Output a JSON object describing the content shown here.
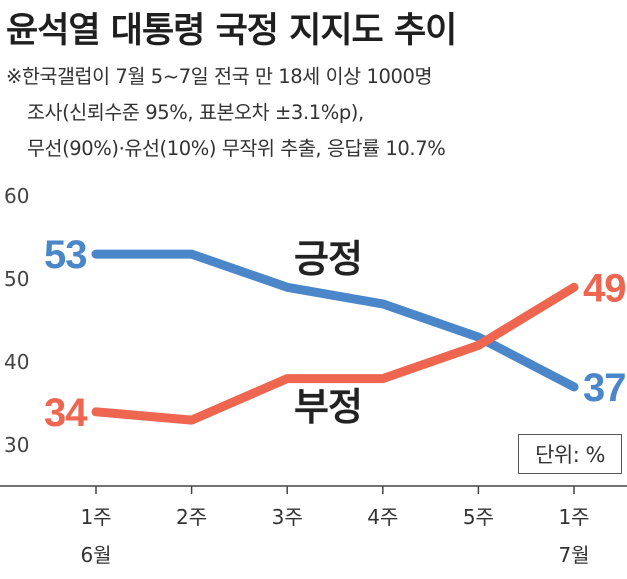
{
  "title": "윤석열 대통령 국정 지지도 추이",
  "notes": [
    "※한국갤럽이 7월 5~7일 전국 만 18세 이상 1000명",
    "조사(신뢰수준 95%, 표본오차 ±3.1%p),",
    "무선(90%)·유선(10%) 무작위 추출, 응답률 10.7%"
  ],
  "unit_label": "단위: %",
  "colors": {
    "positive": "#4a86c8",
    "negative": "#ee6650",
    "axis": "#444444"
  },
  "chart_data": {
    "type": "line",
    "categories": [
      [
        "1주",
        "6월"
      ],
      [
        "2주",
        ""
      ],
      [
        "3주",
        ""
      ],
      [
        "4주",
        ""
      ],
      [
        "5주",
        ""
      ],
      [
        "1주",
        "7월"
      ]
    ],
    "ylim": [
      25,
      60
    ],
    "y_ticks": [
      "30",
      "40",
      "50",
      "60"
    ],
    "series": [
      {
        "name": "긍정",
        "key": "positive",
        "values": [
          53,
          53,
          49,
          47,
          43,
          37
        ],
        "start_label": "53",
        "end_label": "37"
      },
      {
        "name": "부정",
        "key": "negative",
        "values": [
          34,
          33,
          38,
          38,
          42,
          49
        ],
        "start_label": "34",
        "end_label": "49"
      }
    ]
  }
}
